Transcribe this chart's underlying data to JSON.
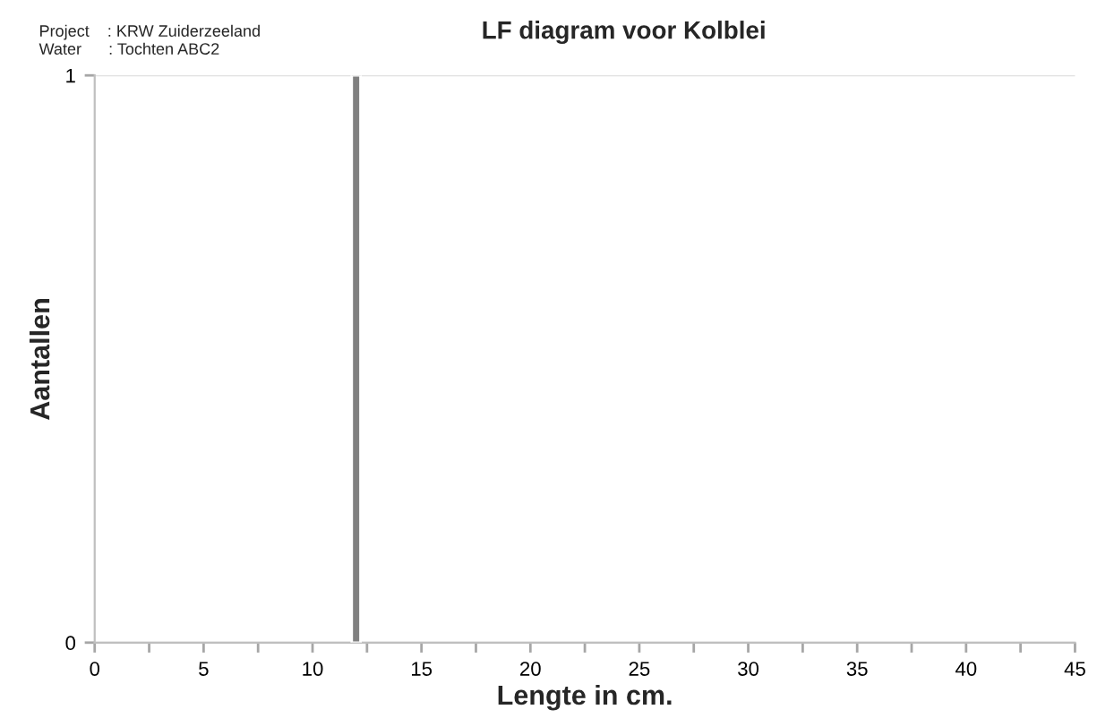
{
  "chart_data": {
    "type": "bar",
    "title": "LF diagram voor Kolblei",
    "xlabel": "Lengte in cm.",
    "ylabel": "Aantallen",
    "annotations": [
      "Project    : KRW Zuiderzeeland",
      "Water      : Tochten ABC2"
    ],
    "x": [
      12
    ],
    "series": [
      {
        "color": "#808080",
        "values": [
          1
        ]
      }
    ],
    "xlim": [
      0,
      45
    ],
    "xticks": [
      0,
      {
        "value": 2.5,
        "label": null
      },
      5,
      {
        "value": 7.5,
        "label": null
      },
      10,
      {
        "value": 12.5,
        "label": null
      },
      15,
      {
        "value": 17.5,
        "label": null
      },
      20,
      {
        "value": 22.5,
        "label": null
      },
      25,
      {
        "value": 27.5,
        "label": null
      },
      30,
      {
        "value": 32.5,
        "label": null
      },
      35,
      {
        "value": 37.5,
        "label": null
      },
      40,
      {
        "value": 42.5,
        "label": null
      },
      45
    ],
    "ylim": [
      0,
      1
    ],
    "yticks": [
      0,
      1
    ],
    "grid": "y",
    "legend": false
  }
}
